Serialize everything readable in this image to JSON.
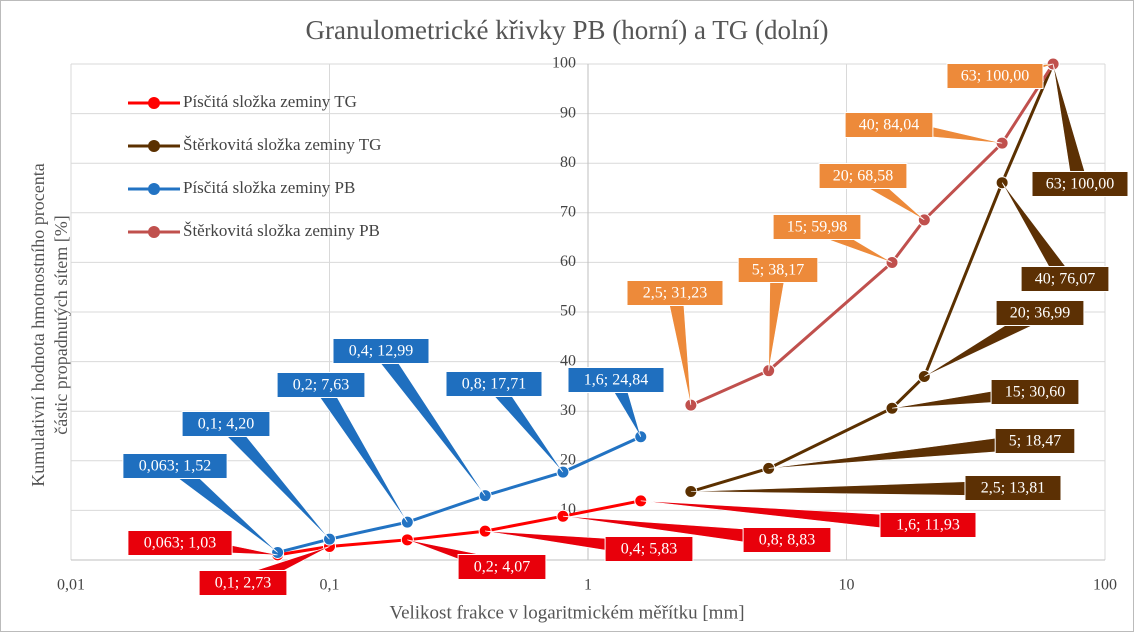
{
  "chart_data": {
    "type": "line",
    "title": "Granulometrické křivky PB (horní) a TG (dolní)",
    "x_label": "Velikost frakce v logaritmickém měřítku [mm]",
    "y_label": [
      "Kumulativní hodnota hmotnostního procenta",
      "částic propadnutých sítem [%]"
    ],
    "x_scale": "log",
    "xlim": [
      0.01,
      100
    ],
    "xticks": [
      {
        "value": 0.01,
        "label": "0,01"
      },
      {
        "value": 0.1,
        "label": "0,1"
      },
      1,
      10,
      100
    ],
    "ylim": [
      0,
      100
    ],
    "yticks": [
      10,
      20,
      30,
      40,
      50,
      60,
      70,
      80,
      90,
      100
    ],
    "yaxis_crosses_x": 1,
    "grid": true,
    "legend": "upper left",
    "series": [
      {
        "name": "Písčitá složka zeminy TG",
        "color": "#ff0000",
        "label_color": "#e8000b",
        "x": [
          0.063,
          0.1,
          0.2,
          0.4,
          0.8,
          1.6
        ],
        "values": [
          1.03,
          2.73,
          4.07,
          5.83,
          8.83,
          11.93
        ],
        "value_labels": [
          "0,063; 1,03",
          "0,1; 2,73",
          "0,2; 4,07",
          "0,4; 5,83",
          "0,8; 8,83",
          "1,6; 11,93"
        ]
      },
      {
        "name": "Štěrkovitá složka zeminy TG",
        "color": "#5b3000",
        "label_color": "#5c3004",
        "x": [
          2.5,
          5,
          15,
          20,
          40,
          63
        ],
        "values": [
          13.81,
          18.47,
          30.6,
          36.99,
          76.07,
          100
        ],
        "value_labels": [
          "2,5; 13,81",
          "5; 18,47",
          "15; 30,60",
          "20; 36,99",
          "40; 76,07",
          "63; 100,00"
        ]
      },
      {
        "name": "Písčitá složka zeminy PB",
        "color": "#2273c3",
        "label_color": "#1f6fbf",
        "x": [
          0.063,
          0.1,
          0.2,
          0.4,
          0.8,
          1.6
        ],
        "values": [
          1.52,
          4.2,
          7.63,
          12.99,
          17.71,
          24.84
        ],
        "value_labels": [
          "0,063; 1,52",
          "0,1; 4,20",
          "0,2; 7,63",
          "0,4; 12,99",
          "0,8; 17,71",
          "1,6; 24,84"
        ]
      },
      {
        "name": "Štěrkovitá složka zeminy PB",
        "color": "#c0504d",
        "label_color": "#ed8a3a",
        "x": [
          2.5,
          5,
          15,
          20,
          40,
          63
        ],
        "values": [
          31.23,
          38.17,
          59.98,
          68.58,
          84.04,
          100
        ],
        "value_labels": [
          "2,5; 31,23",
          "5; 38,17",
          "15; 59,98",
          "20; 68,58",
          "40; 84,04",
          "63; 100,00"
        ]
      }
    ]
  }
}
